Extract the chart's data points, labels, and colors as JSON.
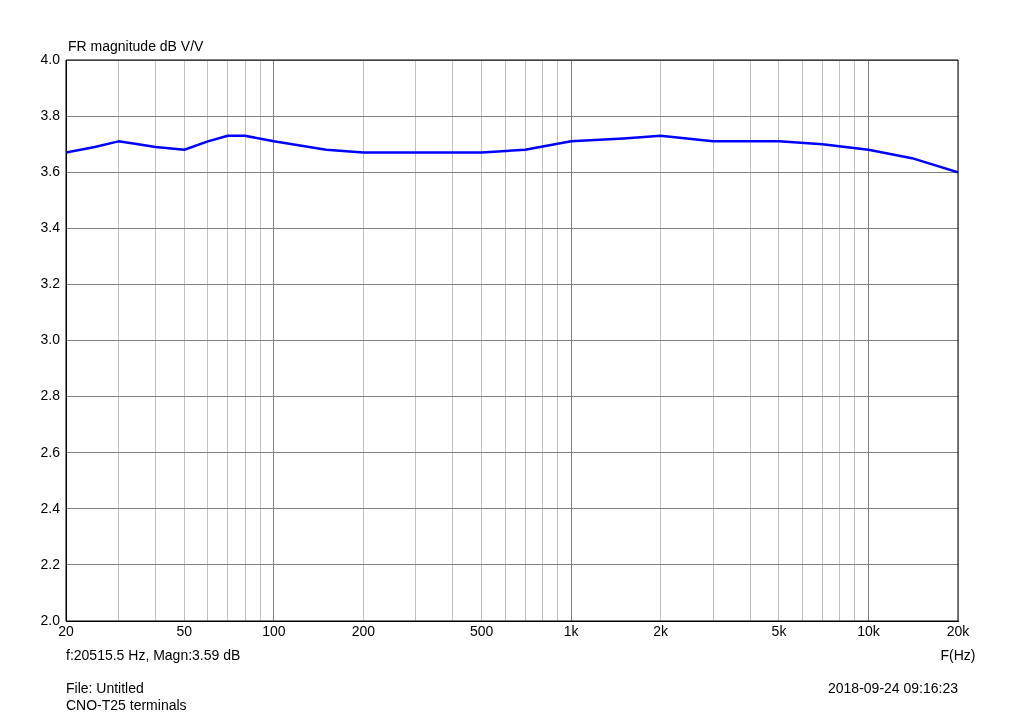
{
  "chart_data": {
    "type": "line",
    "title": "FR magnitude dB V/V",
    "xlabel": "F(Hz)",
    "annotations": [
      "f:20515.5 Hz, Magn:3.59 dB",
      "File: Untitled",
      "CNO-T25 terminals",
      "2018-09-24 09:16:23"
    ],
    "log": "x",
    "grid": true,
    "legend": false,
    "marker": "none",
    "line_style": "solid",
    "xlim": [
      20,
      20000
    ],
    "ylim": [
      2,
      4
    ],
    "xticks": [
      20,
      {
        "value": 30,
        "label": null
      },
      {
        "value": 40,
        "label": null
      },
      50,
      {
        "value": 60,
        "label": null
      },
      {
        "value": 70,
        "label": null
      },
      {
        "value": 80,
        "label": null
      },
      {
        "value": 90,
        "label": null
      },
      100,
      200,
      {
        "value": 300,
        "label": null
      },
      {
        "value": 400,
        "label": null
      },
      500,
      {
        "value": 600,
        "label": null
      },
      {
        "value": 700,
        "label": null
      },
      {
        "value": 800,
        "label": null
      },
      {
        "value": 900,
        "label": null
      },
      {
        "value": 1000,
        "label": "1k"
      },
      {
        "value": 2000,
        "label": "2k"
      },
      {
        "value": 3000,
        "label": null
      },
      {
        "value": 4000,
        "label": null
      },
      {
        "value": 5000,
        "label": "5k"
      },
      {
        "value": 6000,
        "label": null
      },
      {
        "value": 7000,
        "label": null
      },
      {
        "value": 8000,
        "label": null
      },
      {
        "value": 9000,
        "label": null
      },
      {
        "value": 10000,
        "label": "10k"
      },
      {
        "value": 20000,
        "label": "20k"
      }
    ],
    "yticks": [
      {
        "value": 2,
        "label": "2.0"
      },
      2.2,
      2.4,
      2.6,
      2.8,
      {
        "value": 3,
        "label": "3.0"
      },
      3.2,
      3.4,
      3.6,
      3.8,
      {
        "value": 4,
        "label": "4.0"
      }
    ],
    "x": [
      20,
      25,
      30,
      35,
      40,
      50,
      60,
      70,
      80,
      100,
      150,
      200,
      300,
      500,
      700,
      1000,
      1500,
      2000,
      3000,
      5000,
      7000,
      10000,
      14000,
      20000
    ],
    "series": [
      {
        "color": "#0000ff",
        "values": [
          3.67,
          3.69,
          3.71,
          3.7,
          3.69,
          3.68,
          3.71,
          3.73,
          3.73,
          3.71,
          3.68,
          3.67,
          3.67,
          3.67,
          3.68,
          3.71,
          3.72,
          3.73,
          3.71,
          3.71,
          3.7,
          3.68,
          3.65,
          3.6
        ]
      }
    ]
  }
}
